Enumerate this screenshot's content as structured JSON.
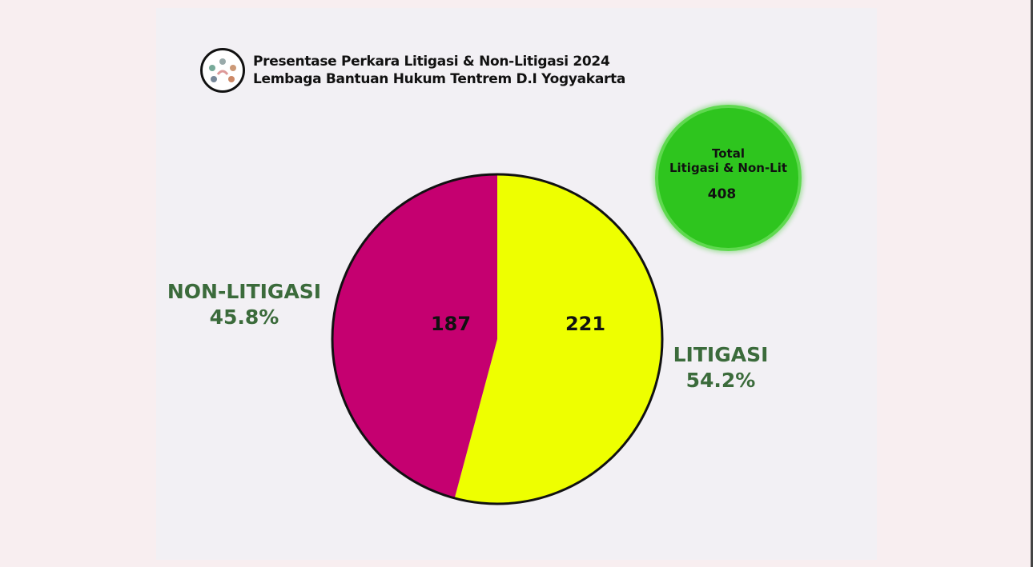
{
  "header": {
    "title_line1": "Presentase Perkara Litigasi & Non-Litigasi 2024",
    "title_line2": "Lembaga Bantuan Hukum Tentrem D.I Yogyakarta"
  },
  "total_badge": {
    "line1": "Total",
    "line2": "Litigasi & Non-Lit",
    "value": "408",
    "color": "#2ec51e"
  },
  "chart_data": {
    "type": "pie",
    "title": "Presentase Perkara Litigasi & Non-Litigasi 2024",
    "slices": [
      {
        "name": "LITIGASI",
        "value": 221,
        "value_label": "221",
        "percent": "54.2%",
        "color": "#eeff00"
      },
      {
        "name": "NON-LITIGASI",
        "value": 187,
        "value_label": "187",
        "percent": "45.8%",
        "color": "#c50070"
      }
    ],
    "start": "top",
    "direction": "clockwise"
  }
}
